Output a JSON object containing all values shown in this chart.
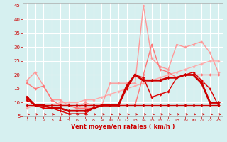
{
  "x": [
    0,
    1,
    2,
    3,
    4,
    5,
    6,
    7,
    8,
    9,
    10,
    11,
    12,
    13,
    14,
    15,
    16,
    17,
    18,
    19,
    20,
    21,
    22,
    23
  ],
  "series": [
    {
      "name": "line_diagonal_light",
      "color": "#ffaaaa",
      "lw": 1.0,
      "marker": "D",
      "markersize": 1.8,
      "y": [
        8,
        9,
        9,
        9,
        10,
        10,
        10,
        11,
        11,
        12,
        13,
        14,
        15,
        16,
        17,
        18,
        19,
        20,
        21,
        22,
        23,
        24,
        25,
        25
      ]
    },
    {
      "name": "line_light_pink_high",
      "color": "#ff9999",
      "lw": 1.0,
      "marker": "D",
      "markersize": 1.8,
      "y": [
        18,
        21,
        16,
        11,
        11,
        9,
        8,
        10,
        9,
        9,
        17,
        17,
        17,
        17,
        45,
        26,
        23,
        22,
        31,
        30,
        31,
        32,
        28,
        21
      ]
    },
    {
      "name": "line_medium_pink",
      "color": "#ff7777",
      "lw": 1.0,
      "marker": "D",
      "markersize": 1.8,
      "y": [
        17,
        15,
        16,
        11,
        9,
        9,
        8,
        8,
        8,
        9,
        9,
        9,
        9,
        9,
        20,
        31,
        22,
        21,
        19,
        20,
        20,
        20,
        20,
        20
      ]
    },
    {
      "name": "line_dark_red_thin",
      "color": "#dd0000",
      "lw": 1.0,
      "marker": "D",
      "markersize": 1.8,
      "y": [
        11,
        9,
        8,
        8,
        7,
        6,
        6,
        6,
        8,
        9,
        9,
        9,
        15,
        20,
        19,
        12,
        13,
        14,
        19,
        20,
        21,
        18,
        15,
        9
      ]
    },
    {
      "name": "line_dark_red_thick",
      "color": "#cc0000",
      "lw": 2.0,
      "marker": "D",
      "markersize": 2.2,
      "y": [
        12,
        9,
        9,
        8,
        8,
        7,
        7,
        7,
        8,
        9,
        9,
        9,
        16,
        20,
        18,
        18,
        18,
        19,
        19,
        20,
        20,
        17,
        10,
        10
      ]
    },
    {
      "name": "line_flat_bottom",
      "color": "#cc0000",
      "lw": 1.0,
      "marker": "D",
      "markersize": 1.8,
      "y": [
        9,
        9,
        9,
        9,
        9,
        9,
        9,
        9,
        9,
        9,
        9,
        9,
        9,
        9,
        9,
        9,
        9,
        9,
        9,
        9,
        9,
        9,
        9,
        9
      ]
    }
  ],
  "xlabel": "Vent moyen/en rafales ( km/h )",
  "xlim": [
    -0.5,
    23.5
  ],
  "ylim": [
    5,
    46
  ],
  "yticks": [
    5,
    10,
    15,
    20,
    25,
    30,
    35,
    40,
    45
  ],
  "xticks": [
    0,
    1,
    2,
    3,
    4,
    5,
    6,
    7,
    8,
    9,
    10,
    11,
    12,
    13,
    14,
    15,
    16,
    17,
    18,
    19,
    20,
    21,
    22,
    23
  ],
  "bg_color": "#d6f0f0",
  "grid_color": "#ffffff",
  "xlabel_color": "#cc0000",
  "tick_color": "#cc0000",
  "spine_color": "#aaaaaa"
}
